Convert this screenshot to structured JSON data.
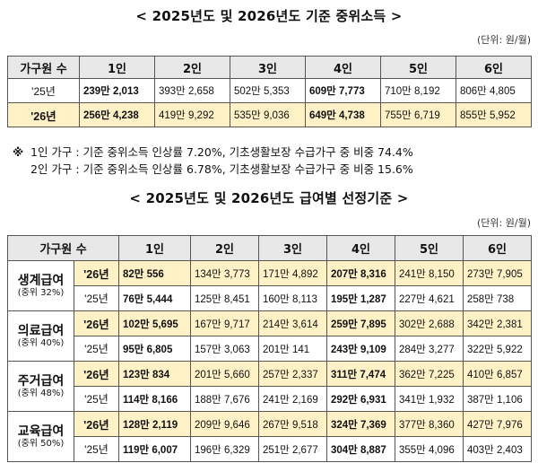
{
  "title1": "< 2025년도 및 2026년도 기준 중위소득 >",
  "unit1": "(단위: 원/월)",
  "table1": {
    "headers": [
      "가구원 수",
      "1인",
      "2인",
      "3인",
      "4인",
      "5인",
      "6인"
    ],
    "rows": [
      {
        "year": "'25년",
        "values": [
          "239만 2,013",
          "393만 2,658",
          "502만 5,353",
          "609만 7,773",
          "710만 8,192",
          "806만 4,805"
        ]
      },
      {
        "year": "'26년",
        "values": [
          "256만 4,238",
          "419만 9,292",
          "535만 9,036",
          "649만 4,738",
          "755만 6,719",
          "855만 5,952"
        ]
      }
    ]
  },
  "notes": [
    {
      "mark": "※",
      "text": "1인 가구 : 기준 중위소득 인상률 7.20%, 기초생활보장 수급가구 중 비중 74.4%"
    },
    {
      "mark": "",
      "text": "2인 가구 : 기준 중위소득 인상률 6.78%, 기초생활보장 수급가구 중 비중 15.6%"
    }
  ],
  "title2": "< 2025년도 및 2026년도 급여별 선정기준 >",
  "unit2": "(단위: 원/월)",
  "table2": {
    "headers": [
      "가구원 수",
      "1인",
      "2인",
      "3인",
      "4인",
      "5인",
      "6인"
    ],
    "groups": [
      {
        "name": "생계급여",
        "sub": "(중위 32%)",
        "rows": [
          {
            "year": "'26년",
            "values": [
              "82만 556",
              "134만 3,773",
              "171만 4,892",
              "207만 8,316",
              "241만 8,150",
              "273만 7,905"
            ]
          },
          {
            "year": "'25년",
            "values": [
              "76만 5,444",
              "125만 8,451",
              "160만 8,113",
              "195만 1,287",
              "227만 4,621",
              "258만 738"
            ]
          }
        ]
      },
      {
        "name": "의료급여",
        "sub": "(중위 40%)",
        "rows": [
          {
            "year": "'26년",
            "values": [
              "102만 5,695",
              "167만 9,717",
              "214만 3,614",
              "259만 7,895",
              "302만 2,688",
              "342만 2,381"
            ]
          },
          {
            "year": "'25년",
            "values": [
              "95만 6,805",
              "157만 3,063",
              "201만 141",
              "243만 9,109",
              "284만 3,277",
              "322만 5,922"
            ]
          }
        ]
      },
      {
        "name": "주거급여",
        "sub": "(중위 48%)",
        "rows": [
          {
            "year": "'26년",
            "values": [
              "123만 834",
              "201만 5,660",
              "257만 2,337",
              "311만 7,474",
              "362만 7,225",
              "410만 6,857"
            ]
          },
          {
            "year": "'25년",
            "values": [
              "114만 8,166",
              "188만 7,676",
              "241만 2,169",
              "292만 6,931",
              "341만 1,932",
              "387만 1,106"
            ]
          }
        ]
      },
      {
        "name": "교육급여",
        "sub": "(중위 50%)",
        "rows": [
          {
            "year": "'26년",
            "values": [
              "128만 2,119",
              "209만 9,646",
              "267만 9,518",
              "324만 7,369",
              "377만 8,360",
              "427만 7,976"
            ]
          },
          {
            "year": "'25년",
            "values": [
              "119만 6,007",
              "196만 6,329",
              "251만 2,677",
              "304만 8,887",
              "355만 4,096",
              "403만 2,403"
            ]
          }
        ]
      }
    ]
  }
}
